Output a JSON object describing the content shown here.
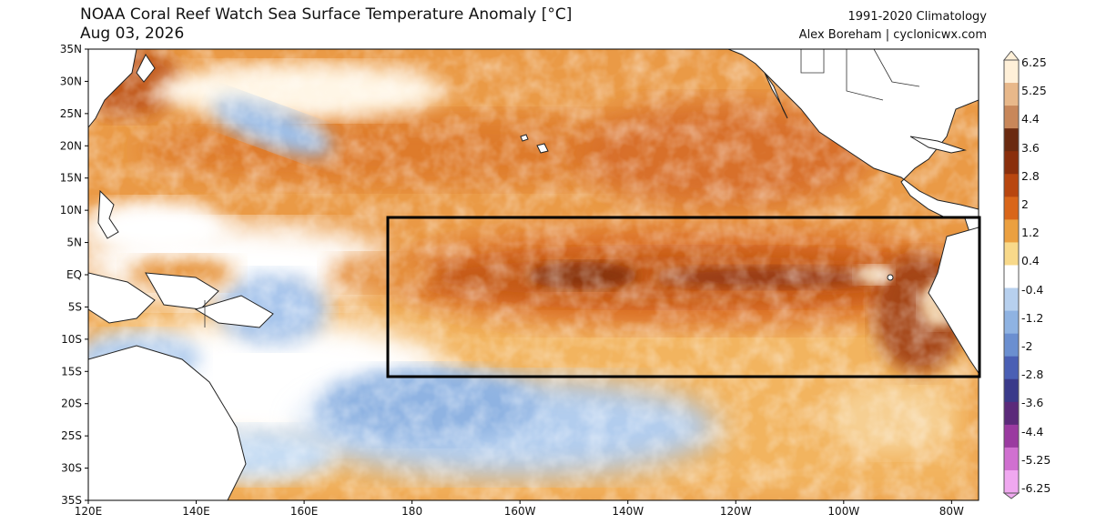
{
  "header": {
    "title": "NOAA Coral Reef Watch Sea Surface Temperature Anomaly [°C]",
    "date": "Aug 03, 2026",
    "climatology": "1991-2020 Climatology",
    "credit": "Alex Boreham | cyclonicwx.com"
  },
  "axes": {
    "lat_labels": [
      "35N",
      "30N",
      "25N",
      "20N",
      "15N",
      "10N",
      "5N",
      "EQ",
      "5S",
      "10S",
      "15S",
      "20S",
      "25S",
      "30S",
      "35S"
    ],
    "lon_labels": [
      "120E",
      "140E",
      "160E",
      "180",
      "160W",
      "140W",
      "120W",
      "100W",
      "80W"
    ]
  },
  "colorbar": {
    "labels": [
      "6.25",
      "5.25",
      "4.4",
      "3.6",
      "2.8",
      "2",
      "1.2",
      "0.4",
      "-0.4",
      "-1.2",
      "-2",
      "-2.8",
      "-3.6",
      "-4.4",
      "-5.25",
      "-6.25"
    ],
    "colors": [
      "#fff0d8",
      "#e8b88a",
      "#c8875a",
      "#6a2a10",
      "#8a2f0c",
      "#b8460f",
      "#d9661a",
      "#eba040",
      "#f8d98a",
      "#ffffff",
      "#b7d0ee",
      "#8fb3e2",
      "#6b8fd0",
      "#4a5fb4",
      "#3a3a8a",
      "#5b2a7a",
      "#9a3aa0",
      "#d070d0",
      "#f0a8f0"
    ]
  },
  "map_features": {
    "region_box": "Niño region outline",
    "anomaly_colors": {
      "deep_warm": "#8a3a10",
      "warm": "#d9651b",
      "mild_warm": "#eea048",
      "neutral": "#ffffff",
      "cool": "#b9d3f0",
      "cooler": "#8eb0e0"
    }
  }
}
